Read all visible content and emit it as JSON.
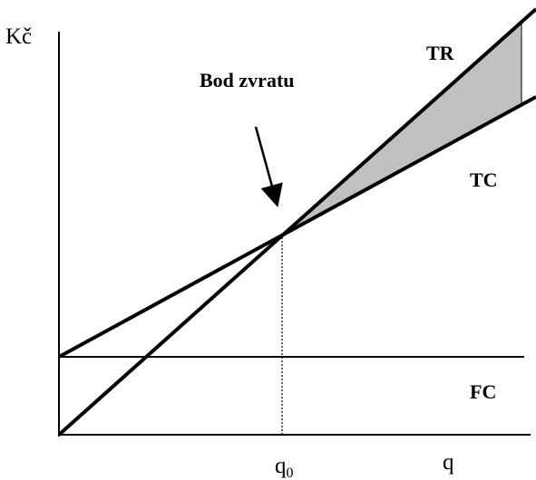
{
  "axes": {
    "y_label": "Kč",
    "x_label": "q"
  },
  "curves": {
    "tr": "TR",
    "tc": "TC",
    "fc": "FC"
  },
  "annotation": "Bod zvratu",
  "break_even_q": {
    "base": "q",
    "sub": "0"
  }
}
